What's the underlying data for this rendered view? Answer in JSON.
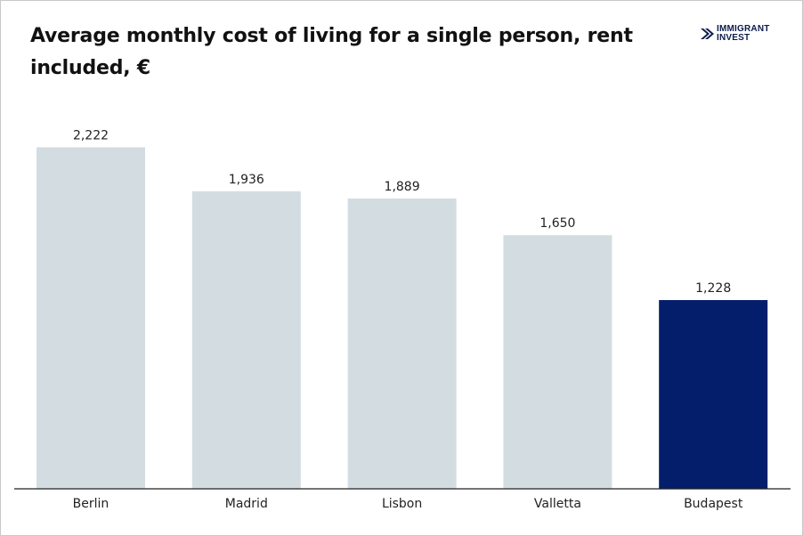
{
  "brand": {
    "name_line1": "IMMIGRANT",
    "name_line2": "INVEST",
    "logo_icon": "chevron-arrows-icon",
    "color": "#0d1b4c"
  },
  "chart_data": {
    "type": "bar",
    "title": "Average monthly cost of living for a single person, rent included, €",
    "categories": [
      "Berlin",
      "Madrid",
      "Lisbon",
      "Valletta",
      "Budapest"
    ],
    "values": [
      2222,
      1936,
      1889,
      1650,
      1228
    ],
    "value_labels": [
      "2,222",
      "1,936",
      "1,889",
      "1,650",
      "1,228"
    ],
    "ylim": [
      0,
      2520
    ],
    "grid": false,
    "legend": "none",
    "bar_color": "#d3dde1",
    "highlight_color": "#041e6b",
    "highlight_category": "Budapest",
    "xlabel": "",
    "ylabel": ""
  }
}
